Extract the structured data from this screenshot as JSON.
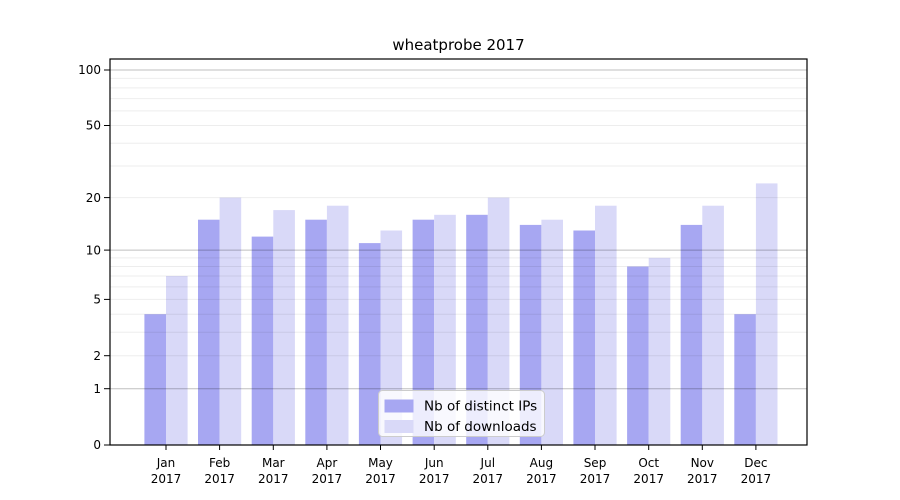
{
  "figure": {
    "background": "#ffffff"
  },
  "chart_data": {
    "type": "bar",
    "title": "wheatprobe 2017",
    "months": [
      "Jan",
      "Feb",
      "Mar",
      "Apr",
      "May",
      "Jun",
      "Jul",
      "Aug",
      "Sep",
      "Oct",
      "Nov",
      "Dec"
    ],
    "year": "2017",
    "series": [
      {
        "name": "Nb of distinct IPs",
        "color": "#a7a7f2",
        "values": [
          4,
          15,
          12,
          15,
          11,
          15,
          16,
          14,
          13,
          8,
          14,
          4
        ]
      },
      {
        "name": "Nb of downloads",
        "color": "#d9d9f8",
        "values": [
          7,
          20,
          17,
          18,
          13,
          16,
          20,
          15,
          18,
          9,
          18,
          24
        ]
      }
    ],
    "xlabel": "",
    "ylabel": "",
    "yscale": "log10(1+y)",
    "ylim": [
      0,
      114.6
    ],
    "yticks": [
      0,
      1,
      2,
      5,
      10,
      20,
      50,
      100
    ],
    "grid": {
      "on": true,
      "major_ticks": [
        1,
        10,
        100
      ],
      "minor_ticks": [
        2,
        3,
        4,
        5,
        6,
        7,
        8,
        9,
        20,
        30,
        40,
        50,
        60,
        70,
        80,
        90
      ],
      "major_color": "rgba(0,0,0,0.25)",
      "minor_color": "rgba(0,0,0,0.07)"
    },
    "legend": {
      "position": "lower-center",
      "entries": [
        "Nb of distinct IPs",
        "Nb of downloads"
      ]
    }
  }
}
